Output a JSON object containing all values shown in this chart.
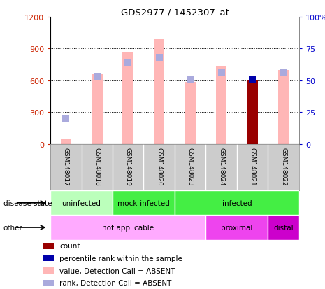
{
  "title": "GDS2977 / 1452307_at",
  "samples": [
    "GSM148017",
    "GSM148018",
    "GSM148019",
    "GSM148020",
    "GSM148023",
    "GSM148024",
    "GSM148021",
    "GSM148022"
  ],
  "value_bars": [
    55,
    660,
    865,
    985,
    585,
    730,
    null,
    695
  ],
  "value_color": "#ffb6b6",
  "rank_dots_y": [
    240,
    640,
    770,
    820,
    605,
    670,
    null,
    670
  ],
  "rank_dot_color": "#aaaadd",
  "count_bar_idx": 6,
  "count_bar_val": 600,
  "count_color": "#990000",
  "percentile_dot_idx": 6,
  "percentile_dot_val": 615,
  "percentile_color": "#0000aa",
  "ylim_left": [
    0,
    1200
  ],
  "ylim_right": [
    0,
    100
  ],
  "yticks_left": [
    0,
    300,
    600,
    900,
    1200
  ],
  "yticks_right": [
    0,
    25,
    50,
    75,
    100
  ],
  "left_tick_labels": [
    "0",
    "300",
    "600",
    "900",
    "1200"
  ],
  "right_tick_labels": [
    "0",
    "25",
    "50",
    "75",
    "100%"
  ],
  "left_color": "#cc2200",
  "right_color": "#0000cc",
  "disease_state_groups": [
    {
      "label": "uninfected",
      "start": 0,
      "end": 2,
      "color": "#bbffbb"
    },
    {
      "label": "mock-infected",
      "start": 2,
      "end": 4,
      "color": "#44ee44"
    },
    {
      "label": "infected",
      "start": 4,
      "end": 8,
      "color": "#44ee44"
    }
  ],
  "other_groups": [
    {
      "label": "not applicable",
      "start": 0,
      "end": 5,
      "color": "#ffaaff"
    },
    {
      "label": "proximal",
      "start": 5,
      "end": 7,
      "color": "#ee44ee"
    },
    {
      "label": "distal",
      "start": 7,
      "end": 8,
      "color": "#cc00cc"
    }
  ],
  "disease_label": "disease state",
  "other_label": "other",
  "legend_items": [
    {
      "label": "count",
      "color": "#990000"
    },
    {
      "label": "percentile rank within the sample",
      "color": "#0000aa"
    },
    {
      "label": "value, Detection Call = ABSENT",
      "color": "#ffb6b6"
    },
    {
      "label": "rank, Detection Call = ABSENT",
      "color": "#aaaadd"
    }
  ],
  "bar_width": 0.35,
  "dot_size": 60,
  "bg_color": "#ffffff"
}
